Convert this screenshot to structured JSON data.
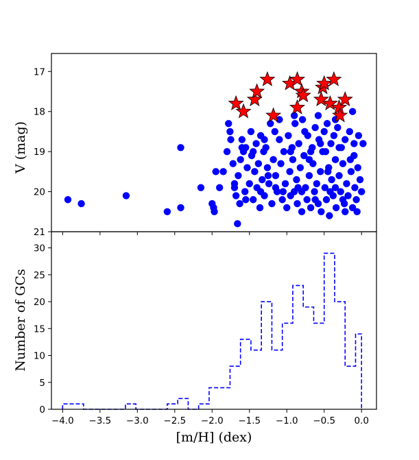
{
  "chart_data": [
    {
      "type": "scatter",
      "ylabel": "V (mag)",
      "xlim": [
        -4.15,
        0.2
      ],
      "ylim": [
        21.0,
        16.55
      ],
      "y_inverted": true,
      "yticks": [
        17,
        18,
        19,
        20,
        21
      ],
      "grid": false,
      "series": [
        {
          "marker": "circle",
          "color": "#0000ff",
          "points": [
            [
              -3.93,
              20.2
            ],
            [
              -3.75,
              20.3
            ],
            [
              -3.15,
              20.1
            ],
            [
              -2.6,
              20.5
            ],
            [
              -2.42,
              18.9
            ],
            [
              -2.42,
              20.4
            ],
            [
              -2.15,
              19.9
            ],
            [
              -2.0,
              20.3
            ],
            [
              -1.98,
              20.4
            ],
            [
              -1.97,
              20.5
            ],
            [
              -1.95,
              19.5
            ],
            [
              -1.9,
              19.9
            ],
            [
              -1.85,
              19.5
            ],
            [
              -1.8,
              19.0
            ],
            [
              -1.78,
              18.3
            ],
            [
              -1.76,
              18.5
            ],
            [
              -1.75,
              18.7
            ],
            [
              -1.72,
              19.3
            ],
            [
              -1.7,
              19.8
            ],
            [
              -1.68,
              20.1
            ],
            [
              -1.66,
              20.8
            ],
            [
              -1.65,
              19.6
            ],
            [
              -1.63,
              20.3
            ],
            [
              -1.62,
              19.2
            ],
            [
              -1.6,
              18.7
            ],
            [
              -1.58,
              19.0
            ],
            [
              -1.56,
              20.0
            ],
            [
              -1.55,
              18.9
            ],
            [
              -1.53,
              19.4
            ],
            [
              -1.5,
              19.8
            ],
            [
              -1.48,
              18.5
            ],
            [
              -1.47,
              19.1
            ],
            [
              -1.45,
              20.2
            ],
            [
              -1.43,
              19.5
            ],
            [
              -1.41,
              18.8
            ],
            [
              -1.4,
              19.9
            ],
            [
              -1.38,
              19.3
            ],
            [
              -1.36,
              20.4
            ],
            [
              -1.35,
              18.6
            ],
            [
              -1.33,
              19.7
            ],
            [
              -1.31,
              19.0
            ],
            [
              -1.3,
              20.1
            ],
            [
              -1.28,
              18.9
            ],
            [
              -1.26,
              19.4
            ],
            [
              -1.24,
              19.8
            ],
            [
              -1.22,
              18.3
            ],
            [
              -1.2,
              20.3
            ],
            [
              -1.18,
              19.2
            ],
            [
              -1.16,
              18.5
            ],
            [
              -1.15,
              19.6
            ],
            [
              -1.13,
              20.0
            ],
            [
              -1.1,
              18.7
            ],
            [
              -1.08,
              19.3
            ],
            [
              -1.06,
              20.2
            ],
            [
              -1.04,
              19.0
            ],
            [
              -1.02,
              19.8
            ],
            [
              -1.0,
              20.4
            ],
            [
              -0.98,
              18.6
            ],
            [
              -0.96,
              19.5
            ],
            [
              -0.95,
              20.1
            ],
            [
              -0.93,
              18.9
            ],
            [
              -0.92,
              19.2
            ],
            [
              -0.9,
              20.0
            ],
            [
              -0.89,
              18.3
            ],
            [
              -0.87,
              19.7
            ],
            [
              -0.86,
              20.3
            ],
            [
              -0.84,
              18.8
            ],
            [
              -0.82,
              19.4
            ],
            [
              -0.8,
              20.5
            ],
            [
              -0.79,
              18.2
            ],
            [
              -0.77,
              19.1
            ],
            [
              -0.75,
              19.9
            ],
            [
              -0.73,
              20.2
            ],
            [
              -0.72,
              18.6
            ],
            [
              -0.7,
              19.6
            ],
            [
              -0.68,
              20.4
            ],
            [
              -0.66,
              18.9
            ],
            [
              -0.65,
              19.3
            ],
            [
              -0.63,
              20.0
            ],
            [
              -0.62,
              18.4
            ],
            [
              -0.6,
              19.8
            ],
            [
              -0.58,
              20.3
            ],
            [
              -0.57,
              18.7
            ],
            [
              -0.55,
              19.5
            ],
            [
              -0.54,
              20.5
            ],
            [
              -0.52,
              19.0
            ],
            [
              -0.5,
              18.5
            ],
            [
              -0.49,
              19.9
            ],
            [
              -0.47,
              20.2
            ],
            [
              -0.46,
              18.3
            ],
            [
              -0.44,
              19.4
            ],
            [
              -0.43,
              20.6
            ],
            [
              -0.41,
              18.8
            ],
            [
              -0.4,
              19.7
            ],
            [
              -0.38,
              20.1
            ],
            [
              -0.37,
              18.6
            ],
            [
              -0.35,
              19.2
            ],
            [
              -0.34,
              20.4
            ],
            [
              -0.32,
              18.4
            ],
            [
              -0.3,
              19.6
            ],
            [
              -0.28,
              20.0
            ],
            [
              -0.27,
              18.9
            ],
            [
              -0.25,
              19.3
            ],
            [
              -0.23,
              20.3
            ],
            [
              -0.22,
              18.7
            ],
            [
              -0.2,
              19.8
            ],
            [
              -0.18,
              20.1
            ],
            [
              -0.16,
              18.5
            ],
            [
              -0.14,
              19.5
            ],
            [
              -0.12,
              20.4
            ],
            [
              -0.1,
              18.8
            ],
            [
              -0.09,
              19.9
            ],
            [
              -0.07,
              20.2
            ],
            [
              -0.05,
              19.4
            ],
            [
              -0.04,
              18.6
            ],
            [
              -0.02,
              19.7
            ],
            [
              0.0,
              20.0
            ],
            [
              0.02,
              18.8
            ],
            [
              -0.12,
              18.0
            ],
            [
              -0.35,
              18.2
            ],
            [
              -0.58,
              18.1
            ],
            [
              -0.9,
              18.1
            ],
            [
              -1.1,
              18.2
            ],
            [
              -1.45,
              19.0
            ],
            [
              -1.25,
              19.6
            ],
            [
              -0.95,
              19.0
            ],
            [
              -0.7,
              19.2
            ],
            [
              -0.48,
              19.0
            ],
            [
              -0.3,
              18.9
            ],
            [
              -0.15,
              19.2
            ],
            [
              -1.55,
              20.2
            ],
            [
              -1.35,
              20.0
            ],
            [
              -1.05,
              20.0
            ],
            [
              -0.85,
              19.9
            ],
            [
              -0.62,
              20.2
            ],
            [
              -0.42,
              20.0
            ],
            [
              -0.22,
              20.5
            ],
            [
              -0.06,
              20.5
            ],
            [
              -1.7,
              19.9
            ],
            [
              -1.6,
              18.9
            ],
            [
              -0.76,
              18.5
            ],
            [
              -0.55,
              18.8
            ],
            [
              -0.35,
              19.9
            ],
            [
              -1.15,
              19.9
            ],
            [
              -0.25,
              20.2
            ],
            [
              -0.45,
              19.5
            ],
            [
              -1.3,
              18.7
            ],
            [
              -0.8,
              20.0
            ],
            [
              -0.68,
              19.0
            ],
            [
              -0.1,
              19.1
            ]
          ]
        },
        {
          "marker": "star",
          "color": "#ff0000",
          "points": [
            [
              -1.68,
              17.8
            ],
            [
              -1.58,
              18.0
            ],
            [
              -1.43,
              17.7
            ],
            [
              -1.4,
              17.5
            ],
            [
              -1.26,
              17.2
            ],
            [
              -1.18,
              18.1
            ],
            [
              -0.96,
              17.3
            ],
            [
              -0.86,
              17.2
            ],
            [
              -0.86,
              17.9
            ],
            [
              -0.8,
              17.5
            ],
            [
              -0.78,
              17.6
            ],
            [
              -0.54,
              17.7
            ],
            [
              -0.52,
              17.4
            ],
            [
              -0.5,
              17.3
            ],
            [
              -0.42,
              17.8
            ],
            [
              -0.37,
              17.2
            ],
            [
              -0.3,
              17.9
            ],
            [
              -0.29,
              18.1
            ],
            [
              -0.22,
              17.7
            ]
          ]
        }
      ]
    },
    {
      "type": "histogram",
      "xlabel": "[m/H] (dex)",
      "ylabel": "Number of GCs",
      "xlim": [
        -4.15,
        0.2
      ],
      "ylim": [
        0,
        33
      ],
      "xticks": [
        -4.0,
        -3.5,
        -3.0,
        -2.5,
        -2.0,
        -1.5,
        -1.0,
        -0.5,
        0.0
      ],
      "xtick_labels": [
        "−4.0",
        "−3.5",
        "−3.0",
        "−2.5",
        "−2.0",
        "−1.5",
        "−1.0",
        "−0.5",
        "0.0"
      ],
      "yticks": [
        0,
        5,
        10,
        15,
        20,
        25,
        30
      ],
      "line_style": "dashed",
      "color": "#0000ff",
      "bin_edges": [
        -4.0,
        -3.86,
        -3.72,
        -3.58,
        -3.44,
        -3.3,
        -3.16,
        -3.02,
        -2.88,
        -2.74,
        -2.6,
        -2.46,
        -2.32,
        -2.18,
        -2.04,
        -1.9,
        -1.76,
        -1.62,
        -1.48,
        -1.34,
        -1.2,
        -1.06,
        -0.92,
        -0.78,
        -0.64,
        -0.5,
        -0.36,
        -0.22,
        -0.08,
        0.0
      ],
      "counts": [
        1,
        1,
        0,
        0,
        0,
        0,
        1,
        0,
        0,
        0,
        1,
        2,
        0,
        1,
        4,
        4,
        8,
        13,
        11,
        20,
        11,
        16,
        23,
        19,
        16,
        29,
        20,
        8,
        14
      ]
    }
  ]
}
